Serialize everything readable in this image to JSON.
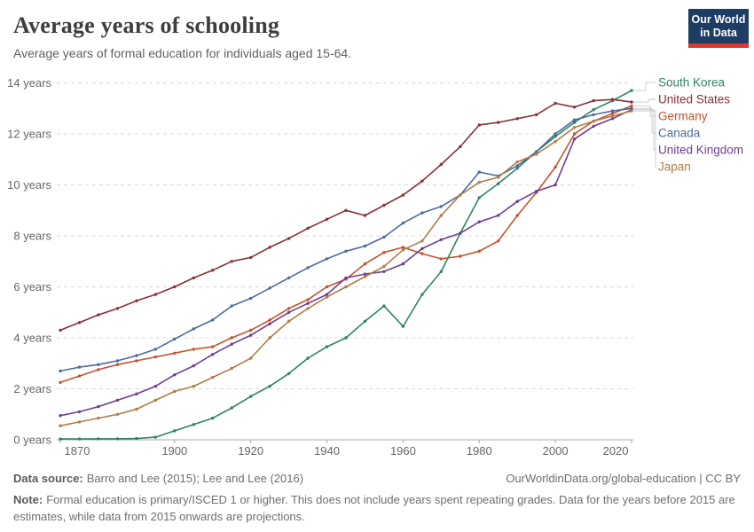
{
  "header": {
    "title": "Average years of schooling",
    "subtitle": "Average years of formal education for individuals aged 15-64.",
    "logo": {
      "line1": "Our World",
      "line2": "in Data",
      "bg_color": "#1d3d63",
      "bar_color": "#e0352b"
    }
  },
  "chart_data": {
    "type": "line",
    "title": "Average years of schooling",
    "xlabel": "",
    "ylabel": "",
    "xlim": [
      1870,
      2020
    ],
    "ylim": [
      0,
      14
    ],
    "grid": "horizontal-dashed",
    "legend_position": "right",
    "x_ticks": [
      1870,
      1900,
      1920,
      1940,
      1960,
      1980,
      2000,
      2020
    ],
    "y_ticks": [
      0,
      2,
      4,
      6,
      8,
      10,
      12,
      14
    ],
    "y_tick_suffix": " years",
    "x": [
      1870,
      1875,
      1880,
      1885,
      1890,
      1895,
      1900,
      1905,
      1910,
      1915,
      1920,
      1925,
      1930,
      1935,
      1940,
      1945,
      1950,
      1955,
      1960,
      1965,
      1970,
      1975,
      1980,
      1985,
      1990,
      1995,
      2000,
      2005,
      2010,
      2015,
      2020
    ],
    "series": [
      {
        "name": "South Korea",
        "color": "#2c8465",
        "values": [
          0.03,
          0.03,
          0.04,
          0.04,
          0.05,
          0.1,
          0.35,
          0.6,
          0.85,
          1.25,
          1.7,
          2.1,
          2.6,
          3.2,
          3.65,
          4.0,
          4.65,
          5.25,
          4.45,
          5.7,
          6.6,
          8.1,
          9.5,
          10.05,
          10.65,
          11.3,
          11.9,
          12.45,
          12.95,
          13.3,
          13.7
        ]
      },
      {
        "name": "United States",
        "color": "#883039",
        "values": [
          4.3,
          4.6,
          4.9,
          5.15,
          5.45,
          5.7,
          6.0,
          6.35,
          6.65,
          7.0,
          7.15,
          7.55,
          7.9,
          8.3,
          8.65,
          9.0,
          8.8,
          9.2,
          9.6,
          10.15,
          10.8,
          11.5,
          12.35,
          12.45,
          12.6,
          12.75,
          13.2,
          13.05,
          13.3,
          13.35,
          13.25
        ]
      },
      {
        "name": "Germany",
        "color": "#c4522e",
        "values": [
          2.25,
          2.5,
          2.75,
          2.95,
          3.1,
          3.25,
          3.4,
          3.55,
          3.65,
          4.0,
          4.3,
          4.7,
          5.15,
          5.5,
          6.0,
          6.3,
          6.9,
          7.35,
          7.55,
          7.3,
          7.1,
          7.2,
          7.4,
          7.8,
          8.8,
          9.7,
          10.7,
          12.0,
          12.5,
          12.8,
          13.1
        ]
      },
      {
        "name": "Canada",
        "color": "#4c6a9c",
        "values": [
          2.7,
          2.85,
          2.95,
          3.1,
          3.3,
          3.55,
          3.95,
          4.35,
          4.7,
          5.25,
          5.55,
          5.95,
          6.35,
          6.75,
          7.1,
          7.4,
          7.6,
          7.95,
          8.5,
          8.9,
          9.15,
          9.6,
          10.5,
          10.35,
          10.75,
          11.3,
          12.0,
          12.55,
          12.75,
          12.9,
          13.0
        ]
      },
      {
        "name": "United Kingdom",
        "color": "#6d3e91",
        "values": [
          0.95,
          1.1,
          1.3,
          1.55,
          1.8,
          2.1,
          2.55,
          2.9,
          3.35,
          3.75,
          4.1,
          4.55,
          5.0,
          5.35,
          5.7,
          6.35,
          6.5,
          6.6,
          6.9,
          7.5,
          7.85,
          8.1,
          8.55,
          8.8,
          9.35,
          9.75,
          10.0,
          11.8,
          12.3,
          12.6,
          12.95
        ]
      },
      {
        "name": "Japan",
        "color": "#b07d46",
        "values": [
          0.55,
          0.7,
          0.85,
          1.0,
          1.2,
          1.55,
          1.9,
          2.1,
          2.45,
          2.8,
          3.2,
          4.0,
          4.65,
          5.15,
          5.6,
          6.0,
          6.4,
          6.8,
          7.45,
          7.8,
          8.8,
          9.6,
          10.1,
          10.3,
          10.9,
          11.2,
          11.7,
          12.25,
          12.5,
          12.7,
          12.9
        ]
      }
    ]
  },
  "footer": {
    "source_label": "Data source:",
    "source_text": "Barro and Lee (2015); Lee and Lee (2016)",
    "link_text": "OurWorldinData.org/global-education | CC BY",
    "note_label": "Note:",
    "note_text": "Formal education is primary/ISCED 1 or higher. This does not include years spent repeating grades. Data for the years before 2015 are estimates, while data from 2015 onwards are projections."
  }
}
